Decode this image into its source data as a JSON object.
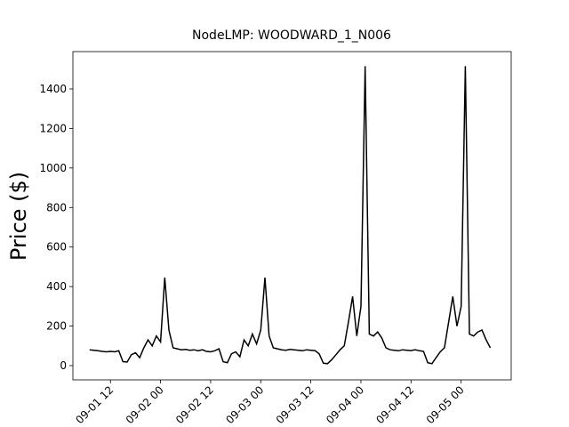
{
  "chart_data": {
    "type": "line",
    "title": "NodeLMP: WOODWARD_1_N006",
    "y_label": "Price ($)",
    "x": [
      "09-01 07",
      "09-01 08",
      "09-01 09",
      "09-01 10",
      "09-01 11",
      "09-01 12",
      "09-01 13",
      "09-01 14",
      "09-01 15",
      "09-01 16",
      "09-01 17",
      "09-01 18",
      "09-01 19",
      "09-01 20",
      "09-01 21",
      "09-01 22",
      "09-01 23",
      "09-02 00",
      "09-02 01",
      "09-02 02",
      "09-02 03",
      "09-02 04",
      "09-02 05",
      "09-02 06",
      "09-02 07",
      "09-02 08",
      "09-02 09",
      "09-02 10",
      "09-02 11",
      "09-02 12",
      "09-02 13",
      "09-02 14",
      "09-02 15",
      "09-02 16",
      "09-02 17",
      "09-02 18",
      "09-02 19",
      "09-02 20",
      "09-02 21",
      "09-02 22",
      "09-02 23",
      "09-03 00",
      "09-03 01",
      "09-03 02",
      "09-03 03",
      "09-03 04",
      "09-03 05",
      "09-03 06",
      "09-03 07",
      "09-03 08",
      "09-03 09",
      "09-03 10",
      "09-03 11",
      "09-03 12",
      "09-03 13",
      "09-03 14",
      "09-03 15",
      "09-03 16",
      "09-03 17",
      "09-03 18",
      "09-03 19",
      "09-03 20",
      "09-03 21",
      "09-03 22",
      "09-03 23",
      "09-04 00",
      "09-04 01",
      "09-04 02",
      "09-04 03",
      "09-04 04",
      "09-04 05",
      "09-04 06",
      "09-04 07",
      "09-04 08",
      "09-04 09",
      "09-04 10",
      "09-04 11",
      "09-04 12",
      "09-04 13",
      "09-04 14",
      "09-04 15",
      "09-04 16",
      "09-04 17",
      "09-04 18",
      "09-04 19",
      "09-04 20",
      "09-04 21",
      "09-04 22",
      "09-04 23",
      "09-05 00",
      "09-05 01",
      "09-05 02",
      "09-05 03",
      "09-05 04",
      "09-05 05",
      "09-05 06",
      "09-05 07"
    ],
    "series": [
      {
        "name": "NodeLMP",
        "color": "#000000",
        "values": [
          80,
          78,
          75,
          72,
          70,
          72,
          70,
          75,
          20,
          18,
          55,
          65,
          40,
          90,
          130,
          100,
          150,
          120,
          445,
          180,
          90,
          85,
          80,
          82,
          78,
          80,
          75,
          80,
          72,
          70,
          75,
          85,
          20,
          15,
          60,
          70,
          45,
          130,
          100,
          160,
          110,
          180,
          445,
          150,
          90,
          85,
          80,
          78,
          82,
          80,
          78,
          75,
          80,
          78,
          76,
          60,
          12,
          10,
          30,
          55,
          80,
          100,
          220,
          350,
          150,
          300,
          1515,
          160,
          150,
          170,
          140,
          90,
          80,
          78,
          75,
          80,
          78,
          76,
          80,
          75,
          72,
          15,
          10,
          40,
          70,
          90,
          220,
          350,
          200,
          300,
          1515,
          160,
          150,
          170,
          180,
          130,
          90
        ]
      }
    ],
    "xlim": [
      "09-01 03",
      "09-05 12"
    ],
    "xticks": [
      "09-01 12",
      "09-02 00",
      "09-02 12",
      "09-03 00",
      "09-03 12",
      "09-04 00",
      "09-04 12",
      "09-05 00"
    ],
    "ylim": [
      -72,
      1589
    ],
    "yticks": [
      0,
      200,
      400,
      600,
      800,
      1000,
      1200,
      1400
    ]
  }
}
